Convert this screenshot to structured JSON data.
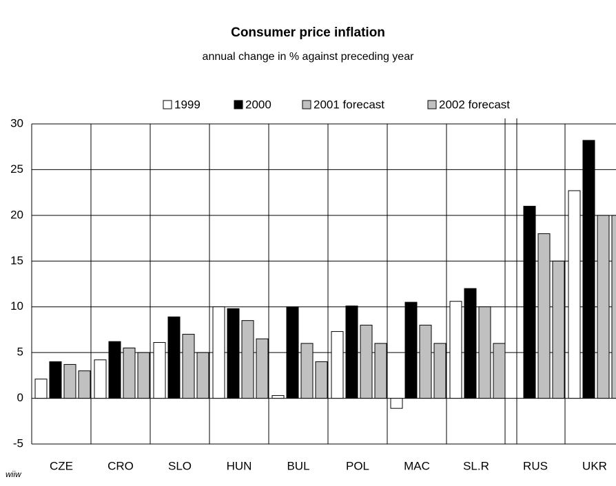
{
  "chart_data": {
    "type": "bar",
    "title": "Consumer price inflation",
    "subtitle": "annual change in % against preceding year",
    "source": "wiiw",
    "categories": [
      "CZE",
      "CRO",
      "SLO",
      "HUN",
      "BUL",
      "POL",
      "MAC",
      "SL.R",
      "RUS",
      "UKR"
    ],
    "series": [
      {
        "name": "1999",
        "color": "#ffffff",
        "values": [
          2.1,
          4.2,
          6.1,
          10.0,
          0.3,
          7.3,
          -1.1,
          10.6,
          null,
          22.7
        ]
      },
      {
        "name": "2000",
        "color": "#000000",
        "values": [
          4.0,
          6.2,
          8.9,
          9.8,
          10.0,
          10.1,
          10.5,
          12.0,
          21.0,
          28.2
        ]
      },
      {
        "name": "2001 forecast",
        "color": "#c0c0c0",
        "values": [
          3.7,
          5.5,
          7.0,
          8.5,
          6.0,
          8.0,
          8.0,
          10.0,
          18.0,
          20.0
        ]
      },
      {
        "name": "2002 forecast",
        "color": "#c0c0c0",
        "values": [
          3.0,
          5.0,
          5.0,
          6.5,
          4.0,
          6.0,
          6.0,
          6.0,
          15.0,
          20.0
        ]
      }
    ],
    "ylim": [
      -5,
      30
    ],
    "yticks": [
      -5,
      0,
      5,
      10,
      15,
      20,
      25,
      30
    ],
    "grid": true
  }
}
